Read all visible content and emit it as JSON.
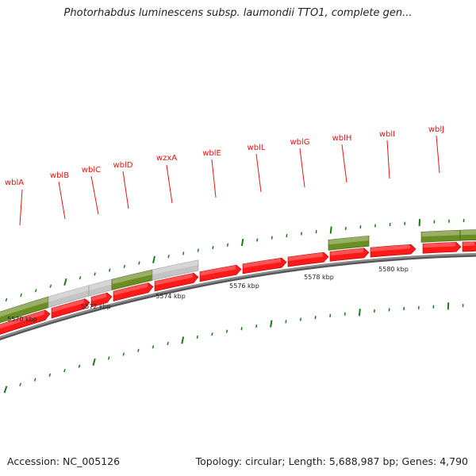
{
  "title": "Photorhabdus luminescens subsp. laumondii TTO1, complete gen...",
  "accession": "Accession: NC_005126",
  "summary": "Topology: circular; Length: 5,688,987 bp; Genes: 4,790",
  "colors": {
    "backbone": "#8a8a8a",
    "gene_forward": "#ff1a1a",
    "feature_green": "#6b8e23",
    "feature_grey": "#c4c4c4",
    "label": "#ee1111",
    "tick": "#1a7a1a"
  },
  "gene_labels": [
    "wblA",
    "wblB",
    "wblC",
    "wblD",
    "wzxA",
    "wblE",
    "wblL",
    "wblG",
    "wblH",
    "wblI",
    "wblJ"
  ],
  "scale_labels": [
    "5570 kbp",
    "5572 kbp",
    "5574 kbp",
    "5576 kbp",
    "5578 kbp",
    "5580 kbp"
  ]
}
